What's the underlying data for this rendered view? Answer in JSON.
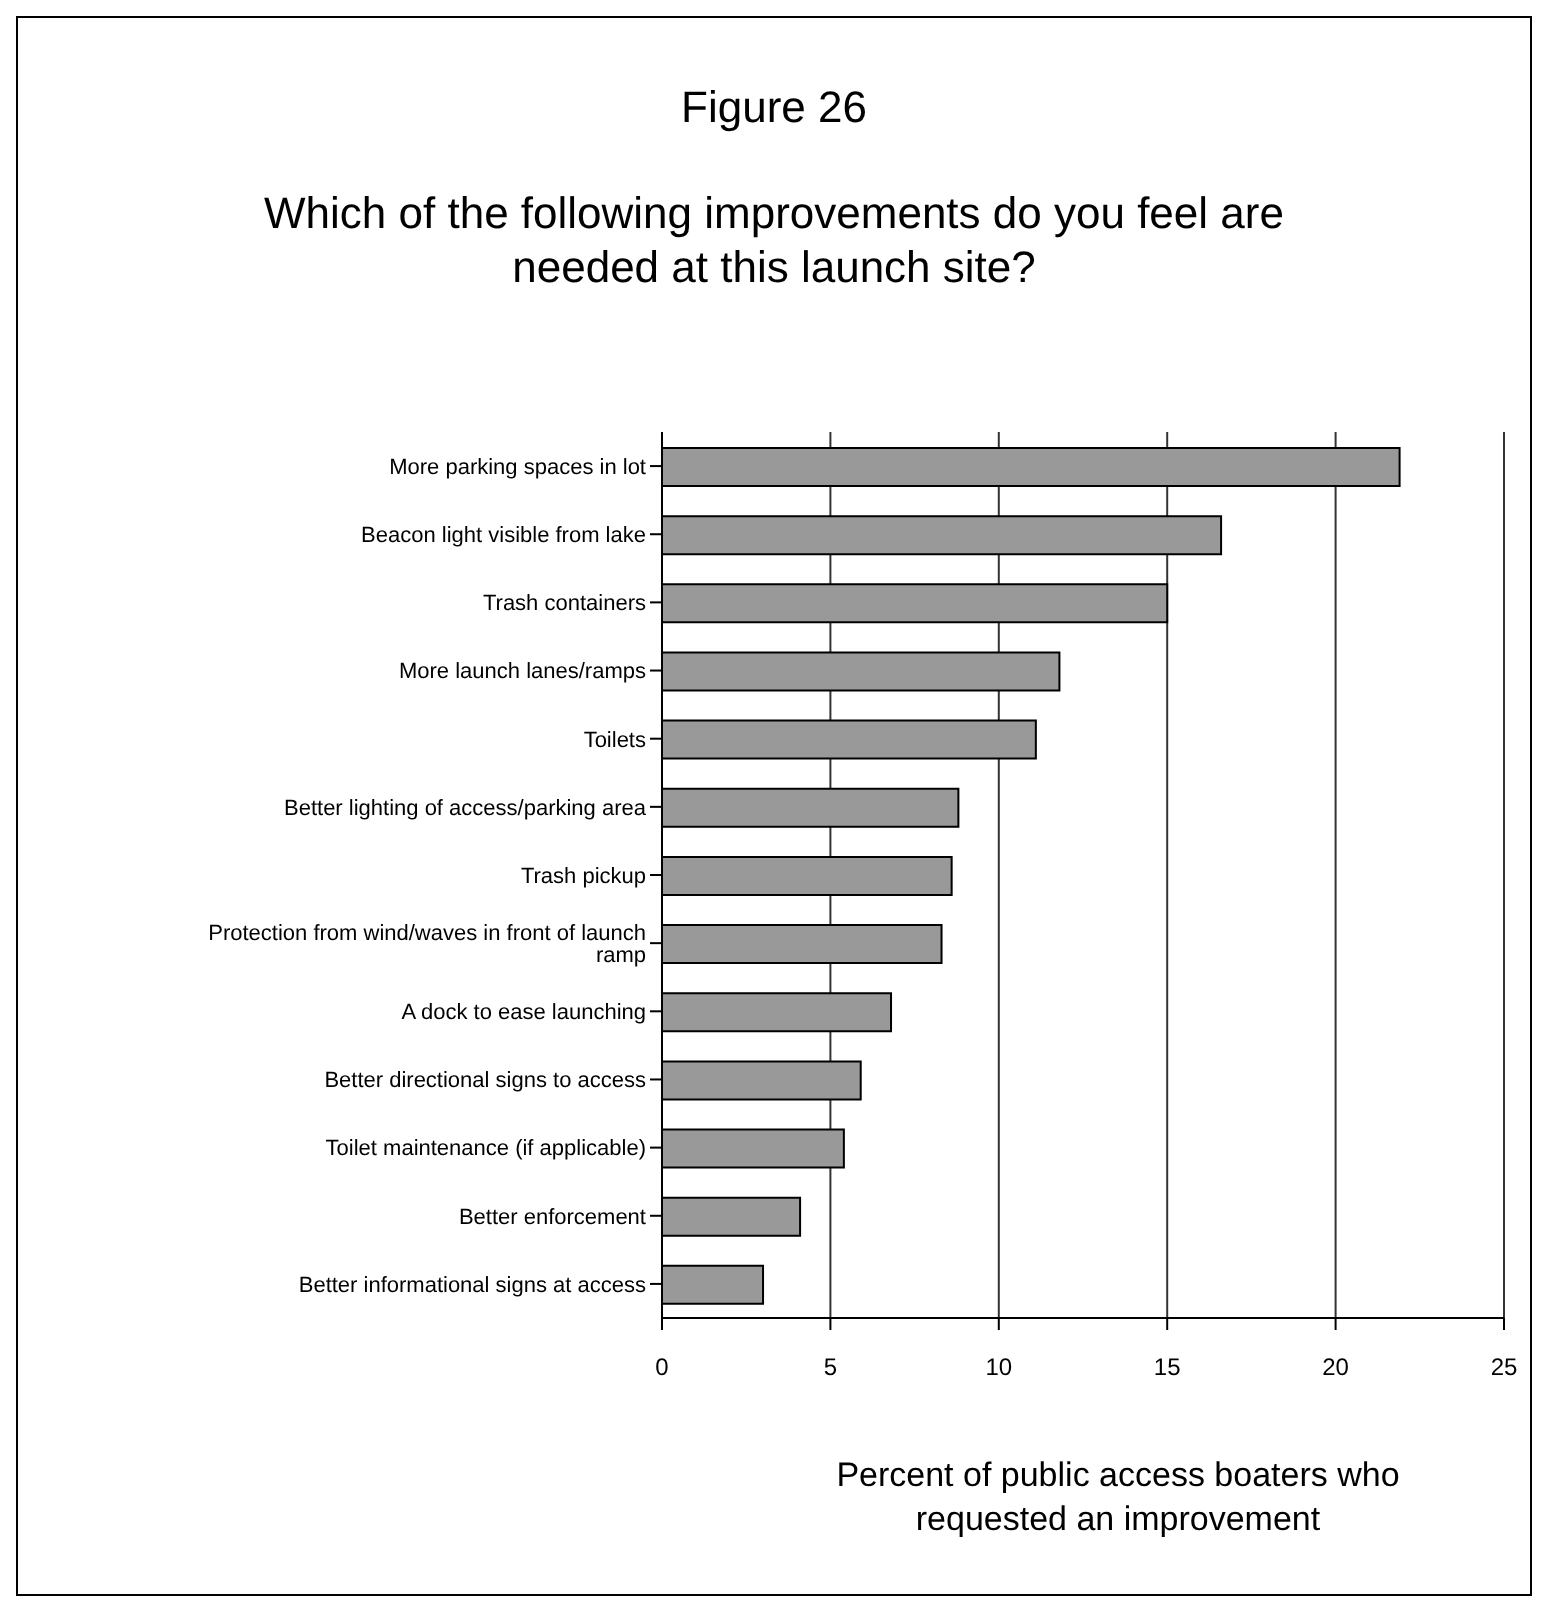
{
  "chart_data": {
    "type": "bar",
    "orientation": "horizontal",
    "title": "Figure 26",
    "subtitle": "Which of the following improvements do you feel are needed at this launch site?",
    "xlabel": "Percent of public access boaters who requested an improvement",
    "categories": [
      "More parking spaces in lot",
      "Beacon light visible from lake",
      "Trash containers",
      "More launch lanes/ramps",
      "Toilets",
      "Better lighting of access/parking area",
      "Trash pickup",
      "Protection from wind/waves in front of launch ramp",
      "A dock to ease launching",
      "Better directional signs to access",
      "Toilet maintenance (if applicable)",
      "Better enforcement",
      "Better informational signs at access"
    ],
    "values": [
      21.9,
      16.6,
      15.0,
      11.8,
      11.1,
      8.8,
      8.6,
      8.3,
      6.8,
      5.9,
      5.4,
      4.1,
      3.0
    ],
    "color": "#999999",
    "xlim": [
      0,
      25
    ],
    "xticks": [
      0,
      5,
      10,
      15,
      20,
      25
    ],
    "grid": "x",
    "legend": false
  }
}
